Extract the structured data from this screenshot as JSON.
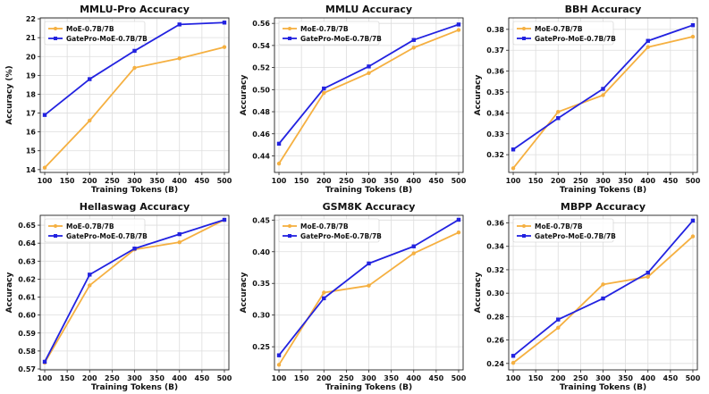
{
  "colors": {
    "moe": "#F5B041",
    "gatepro": "#2222E0",
    "grid": "#dddddd",
    "frame": "#222222"
  },
  "chart_data": [
    {
      "type": "line",
      "title": "MMLU-Pro Accuracy",
      "xlabel": "Training Tokens (B)",
      "ylabel": "Accuracy (%)",
      "x": [
        100,
        200,
        300,
        400,
        500
      ],
      "xlim": [
        90,
        510
      ],
      "xticks": [
        "100",
        "150",
        "200",
        "250",
        "300",
        "350",
        "400",
        "450",
        "500"
      ],
      "ylim": [
        13.85,
        22.05
      ],
      "yticks": [
        "14",
        "15",
        "16",
        "17",
        "18",
        "19",
        "20",
        "21",
        "22"
      ],
      "grid": true,
      "legend": "top-left",
      "series": [
        {
          "name": "MoE-0.7B/7B",
          "values": [
            14.1,
            16.6,
            19.4,
            19.9,
            20.5
          ]
        },
        {
          "name": "GatePro-MoE-0.7B/7B",
          "values": [
            16.9,
            18.8,
            20.3,
            21.7,
            21.8
          ]
        }
      ]
    },
    {
      "type": "line",
      "title": "MMLU Accuracy",
      "xlabel": "Training Tokens (B)",
      "ylabel": "Accuracy",
      "x": [
        100,
        200,
        300,
        400,
        500
      ],
      "xlim": [
        90,
        510
      ],
      "xticks": [
        "100",
        "150",
        "200",
        "250",
        "300",
        "350",
        "400",
        "450",
        "500"
      ],
      "ylim": [
        0.425,
        0.565
      ],
      "yticks": [
        "0.44",
        "0.46",
        "0.48",
        "0.50",
        "0.52",
        "0.54",
        "0.56"
      ],
      "grid": true,
      "legend": "top-left",
      "series": [
        {
          "name": "MoE-0.7B/7B",
          "values": [
            0.433,
            0.497,
            0.515,
            0.538,
            0.554
          ]
        },
        {
          "name": "GatePro-MoE-0.7B/7B",
          "values": [
            0.451,
            0.501,
            0.521,
            0.545,
            0.559
          ]
        }
      ]
    },
    {
      "type": "line",
      "title": "BBH Accuracy",
      "xlabel": "Training Tokens (B)",
      "ylabel": "Accuracy",
      "x": [
        100,
        200,
        300,
        400,
        500
      ],
      "xlim": [
        90,
        510
      ],
      "xticks": [
        "100",
        "150",
        "200",
        "250",
        "300",
        "350",
        "400",
        "450",
        "500"
      ],
      "ylim": [
        0.3115,
        0.3855
      ],
      "yticks": [
        "0.32",
        "0.33",
        "0.34",
        "0.35",
        "0.36",
        "0.37",
        "0.38"
      ],
      "grid": true,
      "legend": "top-left",
      "series": [
        {
          "name": "MoE-0.7B/7B",
          "values": [
            0.3135,
            0.3405,
            0.3485,
            0.3715,
            0.3765
          ]
        },
        {
          "name": "GatePro-MoE-0.7B/7B",
          "values": [
            0.3225,
            0.3375,
            0.3515,
            0.3745,
            0.382
          ]
        }
      ]
    },
    {
      "type": "line",
      "title": "Hellaswag Accuracy",
      "xlabel": "Training Tokens (B)",
      "ylabel": "Accuracy",
      "x": [
        100,
        200,
        300,
        400,
        500
      ],
      "xlim": [
        90,
        510
      ],
      "xticks": [
        "100",
        "150",
        "200",
        "250",
        "300",
        "350",
        "400",
        "450",
        "500"
      ],
      "ylim": [
        0.5695,
        0.6555
      ],
      "yticks": [
        "0.57",
        "0.58",
        "0.59",
        "0.60",
        "0.61",
        "0.62",
        "0.63",
        "0.64",
        "0.65"
      ],
      "grid": true,
      "legend": "top-left",
      "series": [
        {
          "name": "MoE-0.7B/7B",
          "values": [
            0.5735,
            0.6165,
            0.6365,
            0.6405,
            0.653
          ]
        },
        {
          "name": "GatePro-MoE-0.7B/7B",
          "values": [
            0.574,
            0.6225,
            0.637,
            0.645,
            0.653
          ]
        }
      ]
    },
    {
      "type": "line",
      "title": "GSM8K Accuracy",
      "xlabel": "Training Tokens (B)",
      "ylabel": "Accuracy",
      "x": [
        100,
        200,
        300,
        400,
        500
      ],
      "xlim": [
        90,
        510
      ],
      "xticks": [
        "100",
        "150",
        "200",
        "250",
        "300",
        "350",
        "400",
        "450",
        "500"
      ],
      "ylim": [
        0.2135,
        0.4575
      ],
      "yticks": [
        "0.25",
        "0.30",
        "0.35",
        "0.40",
        "0.45"
      ],
      "grid": true,
      "legend": "top-left",
      "series": [
        {
          "name": "MoE-0.7B/7B",
          "values": [
            0.2215,
            0.3355,
            0.3465,
            0.3975,
            0.4305
          ]
        },
        {
          "name": "GatePro-MoE-0.7B/7B",
          "values": [
            0.2365,
            0.3265,
            0.3815,
            0.4085,
            0.4505
          ]
        }
      ]
    },
    {
      "type": "line",
      "title": "MBPP Accuracy",
      "xlabel": "Training Tokens (B)",
      "ylabel": "Accuracy",
      "x": [
        100,
        200,
        300,
        400,
        500
      ],
      "xlim": [
        90,
        510
      ],
      "xticks": [
        "100",
        "150",
        "200",
        "250",
        "300",
        "350",
        "400",
        "450",
        "500"
      ],
      "ylim": [
        0.2345,
        0.3665
      ],
      "yticks": [
        "0.24",
        "0.26",
        "0.28",
        "0.30",
        "0.32",
        "0.34",
        "0.36"
      ],
      "grid": true,
      "legend": "top-left",
      "series": [
        {
          "name": "MoE-0.7B/7B",
          "values": [
            0.2405,
            0.2705,
            0.3075,
            0.314,
            0.3485
          ]
        },
        {
          "name": "GatePro-MoE-0.7B/7B",
          "values": [
            0.2465,
            0.2775,
            0.2955,
            0.3175,
            0.362
          ]
        }
      ]
    }
  ]
}
